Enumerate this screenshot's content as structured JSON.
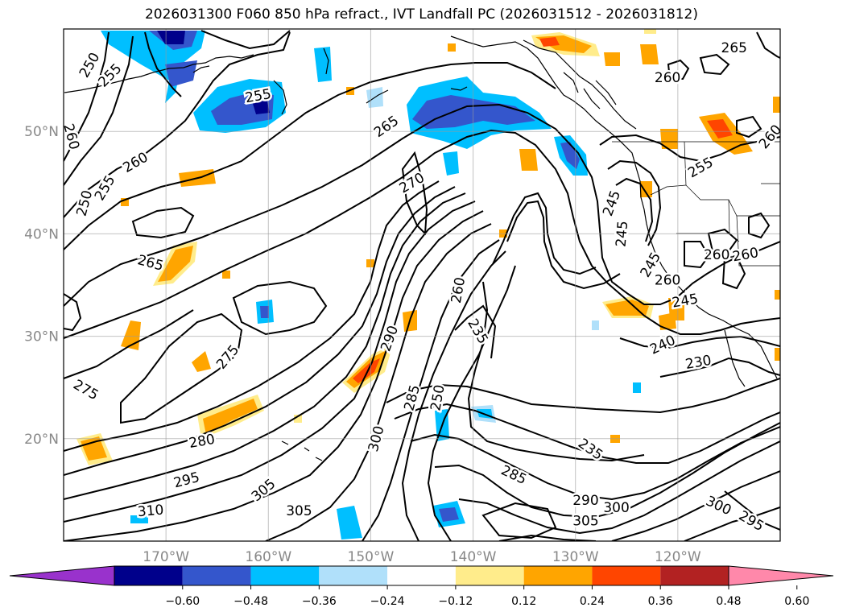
{
  "title": "2026031300 F060 850 hPa refract., IVT Landfall PC (2026031512 - 2026031812)",
  "map": {
    "lon_range": [
      -180,
      -110
    ],
    "lat_range": [
      10,
      60
    ],
    "lat_ticks": [
      {
        "value": 20,
        "label": "20°N"
      },
      {
        "value": 30,
        "label": "30°N"
      },
      {
        "value": 40,
        "label": "40°N"
      },
      {
        "value": 50,
        "label": "50°N"
      }
    ],
    "lon_ticks": [
      {
        "value": -170,
        "label": "170°W"
      },
      {
        "value": -160,
        "label": "160°W"
      },
      {
        "value": -150,
        "label": "150°W"
      },
      {
        "value": -140,
        "label": "140°W"
      },
      {
        "value": -130,
        "label": "130°W"
      },
      {
        "value": -120,
        "label": "120°W"
      }
    ],
    "grid": true
  },
  "colorbar": {
    "extend": "both",
    "ticks": [
      "−0.60",
      "−0.48",
      "−0.36",
      "−0.24",
      "−0.12",
      "0.12",
      "0.24",
      "0.36",
      "0.48",
      "0.60"
    ],
    "colors": [
      "#9932cc",
      "#00008b",
      "#3456cc",
      "#00bfff",
      "#b0e0fa",
      "#ffffff",
      "#ffec8b",
      "#ffa500",
      "#ff4500",
      "#b22222",
      "#ff88aa"
    ]
  },
  "contour_labels": [
    {
      "text": "250",
      "lon": -177.5,
      "lat": 56.5,
      "rot": -60
    },
    {
      "text": "255",
      "lon": -175.5,
      "lat": 55.5,
      "rot": -45
    },
    {
      "text": "260",
      "lon": -179.2,
      "lat": 49.5,
      "rot": 75
    },
    {
      "text": "260",
      "lon": -173.0,
      "lat": 47.0,
      "rot": -30
    },
    {
      "text": "255",
      "lon": -176.0,
      "lat": 44.5,
      "rot": -60
    },
    {
      "text": "250",
      "lon": -178.0,
      "lat": 43.0,
      "rot": -75
    },
    {
      "text": "255",
      "lon": -161.0,
      "lat": 53.5,
      "rot": -10
    },
    {
      "text": "265",
      "lon": -148.5,
      "lat": 50.5,
      "rot": -35
    },
    {
      "text": "270",
      "lon": -146.0,
      "lat": 45.0,
      "rot": -30
    },
    {
      "text": "265",
      "lon": -171.5,
      "lat": 37.2,
      "rot": 15
    },
    {
      "text": "275",
      "lon": -164.0,
      "lat": 28.0,
      "rot": -50
    },
    {
      "text": "275",
      "lon": -177.8,
      "lat": 24.8,
      "rot": 30
    },
    {
      "text": "280",
      "lon": -166.5,
      "lat": 19.8,
      "rot": -10
    },
    {
      "text": "290",
      "lon": -148.2,
      "lat": 29.8,
      "rot": -70
    },
    {
      "text": "285",
      "lon": -146.0,
      "lat": 24.0,
      "rot": -75
    },
    {
      "text": "300",
      "lon": -149.5,
      "lat": 20.0,
      "rot": -75
    },
    {
      "text": "295",
      "lon": -168.0,
      "lat": 16.0,
      "rot": -15
    },
    {
      "text": "305",
      "lon": -160.5,
      "lat": 15.0,
      "rot": -40
    },
    {
      "text": "310",
      "lon": -171.5,
      "lat": 13.0,
      "rot": -5
    },
    {
      "text": "305",
      "lon": -157.0,
      "lat": 13.0,
      "rot": 0
    },
    {
      "text": "260",
      "lon": -141.5,
      "lat": 34.5,
      "rot": -80
    },
    {
      "text": "250",
      "lon": -143.5,
      "lat": 24.0,
      "rot": -80
    },
    {
      "text": "235",
      "lon": -139.5,
      "lat": 30.5,
      "rot": 60
    },
    {
      "text": "285",
      "lon": -136.0,
      "lat": 16.5,
      "rot": 25
    },
    {
      "text": "235",
      "lon": -128.5,
      "lat": 19.0,
      "rot": 35
    },
    {
      "text": "290",
      "lon": -129.0,
      "lat": 14.0,
      "rot": 0
    },
    {
      "text": "300",
      "lon": -126.0,
      "lat": 13.3,
      "rot": 0
    },
    {
      "text": "305",
      "lon": -129.0,
      "lat": 12.0,
      "rot": 0
    },
    {
      "text": "300",
      "lon": -116.0,
      "lat": 13.5,
      "rot": 25
    },
    {
      "text": "295",
      "lon": -112.8,
      "lat": 12.0,
      "rot": 30
    },
    {
      "text": "240",
      "lon": -121.5,
      "lat": 29.2,
      "rot": -25
    },
    {
      "text": "230",
      "lon": -118.0,
      "lat": 27.5,
      "rot": -10
    },
    {
      "text": "245",
      "lon": -126.5,
      "lat": 43.0,
      "rot": -70
    },
    {
      "text": "245",
      "lon": -125.5,
      "lat": 40.0,
      "rot": -85
    },
    {
      "text": "245",
      "lon": -122.7,
      "lat": 37.0,
      "rot": -60
    },
    {
      "text": "260",
      "lon": -121.0,
      "lat": 35.5,
      "rot": 0
    },
    {
      "text": "245",
      "lon": -119.3,
      "lat": 33.5,
      "rot": -10
    },
    {
      "text": "260",
      "lon": -116.2,
      "lat": 38.0,
      "rot": 0
    },
    {
      "text": "260",
      "lon": -113.4,
      "lat": 38.0,
      "rot": -10
    },
    {
      "text": "255",
      "lon": -117.8,
      "lat": 46.5,
      "rot": -30
    },
    {
      "text": "260",
      "lon": -121.0,
      "lat": 55.3,
      "rot": 0
    },
    {
      "text": "265",
      "lon": -114.5,
      "lat": 58.2,
      "rot": 0
    },
    {
      "text": "260",
      "lon": -111.0,
      "lat": 49.5,
      "rot": -50
    }
  ]
}
